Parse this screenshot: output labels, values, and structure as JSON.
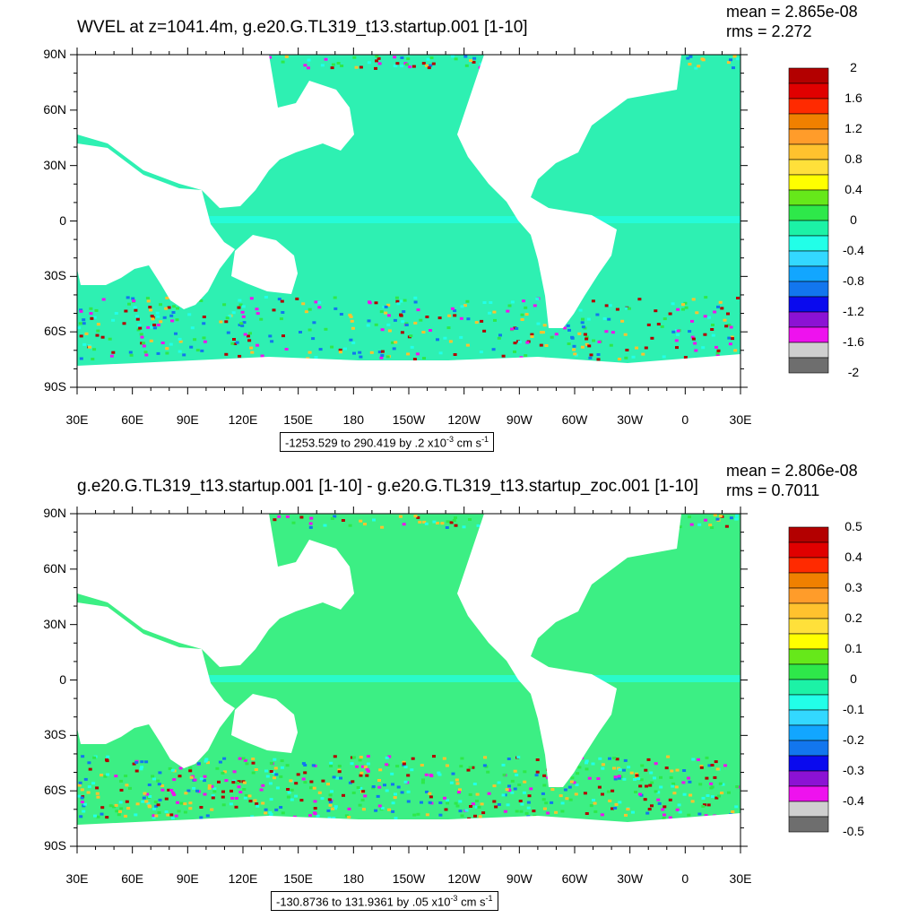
{
  "panels": [
    {
      "title": "WVEL at z=1041.4m, g.e20.G.TL319_t13.startup.001 [1-10]",
      "mean_text": "mean = 2.865e-08",
      "rms_text": "rms = 2.272",
      "range": {
        "prefix": "-1253.529 to 290.419 by .2 x10",
        "exp": "-3",
        "unit": " cm s",
        "unit_exp": "-1"
      },
      "colorbar": {
        "labels": [
          "2",
          "1.6",
          "1.2",
          "0.8",
          "0.4",
          "0",
          "-0.4",
          "-0.8",
          "-1.2",
          "-1.6",
          "-2"
        ]
      }
    },
    {
      "title": "g.e20.G.TL319_t13.startup.001 [1-10] - g.e20.G.TL319_t13.startup_zoc.001 [1-10]",
      "mean_text": "mean = 2.806e-08",
      "rms_text": "rms = 0.7011",
      "range": {
        "prefix": "-130.8736 to 131.9361 by .05 x10",
        "exp": "-3",
        "unit": " cm s",
        "unit_exp": "-1"
      },
      "colorbar": {
        "labels": [
          "0.5",
          "0.4",
          "0.3",
          "0.2",
          "0.1",
          "0",
          "-0.1",
          "-0.2",
          "-0.3",
          "-0.4",
          "-0.5"
        ]
      }
    }
  ],
  "axes": {
    "lat_labels": [
      "90N",
      "60N",
      "30N",
      "0",
      "30S",
      "60S",
      "90S"
    ],
    "lon_labels": [
      "30E",
      "60E",
      "90E",
      "120E",
      "150E",
      "180",
      "150W",
      "120W",
      "90W",
      "60W",
      "30W",
      "0",
      "30E"
    ]
  },
  "colorbar_colors": [
    "#b30000",
    "#e00000",
    "#ff2a00",
    "#f08000",
    "#ff9c2a",
    "#ffc22e",
    "#ffe03a",
    "#ffff00",
    "#66e81a",
    "#2ee84a",
    "#1cf2a6",
    "#22ffe8",
    "#33d8ff",
    "#12a6ff",
    "#1276ee",
    "#0a0aee",
    "#8c12d4",
    "#ee12ee",
    "#cfcfcf",
    "#6e6e6e"
  ]
}
